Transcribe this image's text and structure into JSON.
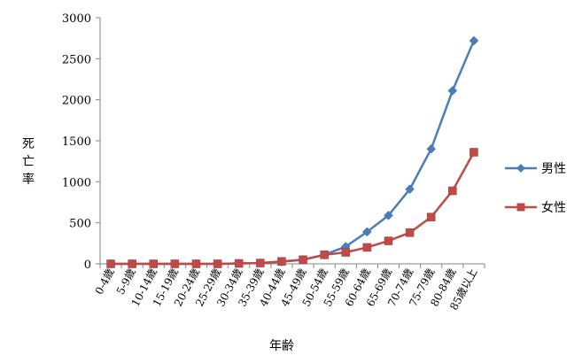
{
  "chart_data": {
    "type": "line",
    "xlabel": "年齢",
    "ylabel": "死亡率",
    "ylim": [
      0,
      3000
    ],
    "yticks": [
      0,
      500,
      1000,
      1500,
      2000,
      2500,
      3000
    ],
    "grid": false,
    "legend_position": "right",
    "categories": [
      "0-4歳",
      "5-9歳",
      "10-14歳",
      "15-19歳",
      "20-24歳",
      "25-29歳",
      "30-34歳",
      "35-39歳",
      "40-44歳",
      "45-49歳",
      "50-54歳",
      "55-59歳",
      "60-64歳",
      "65-69歳",
      "70-74歳",
      "75-79歳",
      "80-84歳",
      "85歳以上"
    ],
    "series": [
      {
        "name": "男性",
        "color": "#4a7ebb",
        "marker": "diamond",
        "values": [
          0,
          0,
          0,
          0,
          0,
          0,
          5,
          10,
          25,
          50,
          110,
          210,
          390,
          590,
          910,
          1400,
          2110,
          2720
        ]
      },
      {
        "name": "女性",
        "color": "#be4b48",
        "marker": "square",
        "values": [
          0,
          0,
          0,
          0,
          0,
          0,
          5,
          10,
          30,
          50,
          110,
          140,
          200,
          280,
          380,
          570,
          890,
          1360
        ]
      }
    ]
  }
}
